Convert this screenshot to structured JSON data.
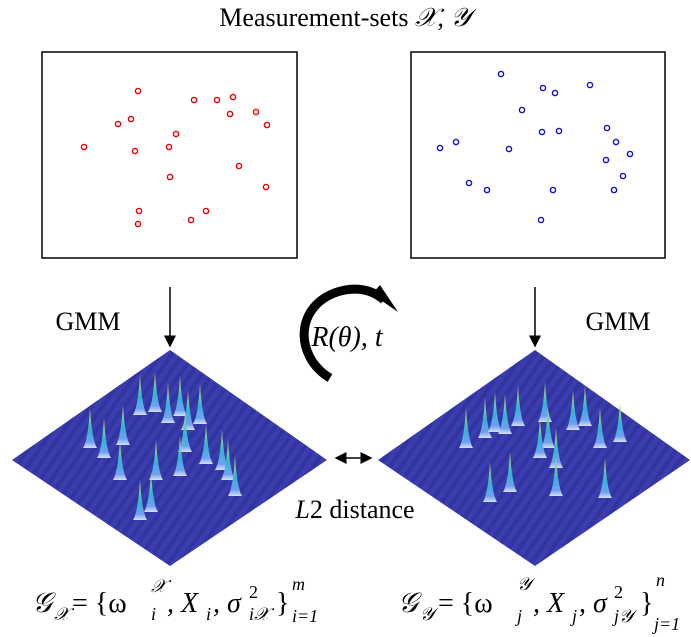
{
  "title": [
    "Measurement-sets ",
    "𝒳, 𝒴"
  ],
  "left_label": "GMM",
  "right_label": "GMM",
  "transform": "R(θ), t",
  "distance": [
    "L",
    "2 distance"
  ],
  "formula_left": [
    "𝒢",
    "𝒳",
    " = {ω",
    "𝒳",
    "i",
    ", X",
    "i",
    ", σ",
    "2",
    "i𝒳",
    "}",
    "m",
    "i=1"
  ],
  "formula_right": [
    "𝒢",
    "𝒴",
    " = {ω",
    "𝒴",
    "j",
    ", X",
    "j",
    ", σ",
    "2",
    "j𝒴",
    "}",
    "n",
    "j=1"
  ]
}
